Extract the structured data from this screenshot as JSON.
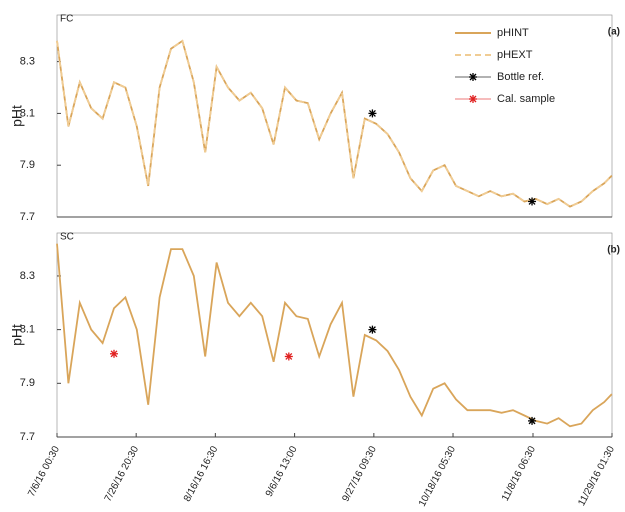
{
  "chart_data": [
    {
      "type": "line",
      "panel_label": "FC",
      "tag": "(a)",
      "ylabel": "pHt",
      "legend": "upper right",
      "xlim": [
        "7/6/16 00:30",
        "11/29/16 01:30"
      ],
      "ylim": [
        7.7,
        8.48
      ],
      "yticks": [
        7.7,
        7.9,
        8.1,
        8.3
      ],
      "x": [
        "7/6/16 00:30",
        "7/9/16 00:30",
        "7/12/16 00:30",
        "7/15/16 00:30",
        "7/18/16 00:30",
        "7/21/16 00:30",
        "7/24/16 00:30",
        "7/27/16 00:30",
        "7/30/16 00:30",
        "8/2/16 00:30",
        "8/5/16 00:30",
        "8/8/16 00:30",
        "8/11/16 00:30",
        "8/14/16 00:30",
        "8/17/16 00:30",
        "8/20/16 00:30",
        "8/23/16 00:30",
        "8/26/16 00:30",
        "8/29/16 00:30",
        "9/1/16 00:30",
        "9/4/16 00:30",
        "9/7/16 00:30",
        "9/10/16 00:30",
        "9/13/16 00:30",
        "9/16/16 00:30",
        "9/19/16 00:30",
        "9/22/16 00:30",
        "9/25/16 00:30",
        "9/28/16 00:30",
        "10/1/16 00:30",
        "10/4/16 00:30",
        "10/7/16 00:30",
        "10/10/16 00:30",
        "10/13/16 00:30",
        "10/16/16 00:30",
        "10/19/16 00:30",
        "10/22/16 00:30",
        "10/25/16 00:30",
        "10/28/16 00:30",
        "10/31/16 00:30",
        "11/3/16 00:30",
        "11/6/16 00:30",
        "11/9/16 00:30",
        "11/12/16 00:30",
        "11/15/16 00:30",
        "11/18/16 00:30",
        "11/21/16 00:30",
        "11/24/16 00:30",
        "11/27/16 00:30",
        "11/29/16 00:30"
      ],
      "series": [
        {
          "name": "pHINT",
          "color": "#d9a55a",
          "values": [
            8.38,
            8.05,
            8.22,
            8.12,
            8.08,
            8.22,
            8.2,
            8.05,
            7.82,
            8.2,
            8.35,
            8.38,
            8.22,
            7.95,
            8.28,
            8.2,
            8.15,
            8.18,
            8.12,
            7.98,
            8.2,
            8.15,
            8.14,
            8.0,
            8.1,
            8.18,
            7.85,
            8.08,
            8.06,
            8.02,
            7.95,
            7.85,
            7.8,
            7.88,
            7.9,
            7.82,
            7.8,
            7.78,
            7.8,
            7.78,
            7.79,
            7.76,
            7.77,
            7.75,
            7.77,
            7.74,
            7.76,
            7.8,
            7.83,
            7.86
          ]
        },
        {
          "name": "pHEXT",
          "color": "#f0cc94",
          "dashed": true,
          "values": [
            8.38,
            8.05,
            8.22,
            8.12,
            8.08,
            8.22,
            8.2,
            8.05,
            7.82,
            8.2,
            8.35,
            8.38,
            8.22,
            7.95,
            8.28,
            8.2,
            8.15,
            8.18,
            8.12,
            7.98,
            8.2,
            8.15,
            8.14,
            8.0,
            8.1,
            8.18,
            7.85,
            8.08,
            8.06,
            8.02,
            7.95,
            7.85,
            7.8,
            7.88,
            7.9,
            7.82,
            7.8,
            7.78,
            7.8,
            7.78,
            7.79,
            7.76,
            7.77,
            7.75,
            7.77,
            7.74,
            7.76,
            7.8,
            7.83,
            7.86
          ]
        }
      ],
      "points": [
        {
          "name": "Bottle ref.",
          "color": "#000000",
          "x": [
            "9/27/16 00:30",
            "11/8/16 00:30"
          ],
          "values": [
            8.1,
            7.76
          ]
        },
        {
          "name": "Cal. sample",
          "color": "#e02020",
          "x": [],
          "values": []
        }
      ]
    },
    {
      "type": "line",
      "panel_label": "SC",
      "tag": "(b)",
      "ylabel": "pHt",
      "xlim": [
        "7/6/16 00:30",
        "11/29/16 01:30"
      ],
      "ylim": [
        7.7,
        8.46
      ],
      "yticks": [
        7.7,
        7.9,
        8.1,
        8.3
      ],
      "xticks": [
        "7/6/16 00:30",
        "7/26/16 20:30",
        "8/16/16 16:30",
        "9/6/16 13:00",
        "9/27/16 09:30",
        "10/18/16 05:30",
        "11/8/16 06:30",
        "11/29/16 01:30"
      ],
      "x": [
        "7/6/16 00:30",
        "7/9/16 00:30",
        "7/12/16 00:30",
        "7/15/16 00:30",
        "7/18/16 00:30",
        "7/21/16 00:30",
        "7/24/16 00:30",
        "7/27/16 00:30",
        "7/30/16 00:30",
        "8/2/16 00:30",
        "8/5/16 00:30",
        "8/8/16 00:30",
        "8/11/16 00:30",
        "8/14/16 00:30",
        "8/17/16 00:30",
        "8/20/16 00:30",
        "8/23/16 00:30",
        "8/26/16 00:30",
        "8/29/16 00:30",
        "9/1/16 00:30",
        "9/4/16 00:30",
        "9/7/16 00:30",
        "9/10/16 00:30",
        "9/13/16 00:30",
        "9/16/16 00:30",
        "9/19/16 00:30",
        "9/22/16 00:30",
        "9/25/16 00:30",
        "9/28/16 00:30",
        "10/1/16 00:30",
        "10/4/16 00:30",
        "10/7/16 00:30",
        "10/10/16 00:30",
        "10/13/16 00:30",
        "10/16/16 00:30",
        "10/19/16 00:30",
        "10/22/16 00:30",
        "10/25/16 00:30",
        "10/28/16 00:30",
        "10/31/16 00:30",
        "11/3/16 00:30",
        "11/6/16 00:30",
        "11/9/16 00:30",
        "11/12/16 00:30",
        "11/15/16 00:30",
        "11/18/16 00:30",
        "11/21/16 00:30",
        "11/24/16 00:30",
        "11/27/16 00:30",
        "11/29/16 00:30"
      ],
      "series": [
        {
          "color": "#d9a55a",
          "values": [
            8.42,
            7.9,
            8.2,
            8.1,
            8.05,
            8.18,
            8.22,
            8.1,
            7.82,
            8.22,
            8.4,
            8.4,
            8.3,
            8.0,
            8.35,
            8.2,
            8.15,
            8.2,
            8.15,
            7.98,
            8.2,
            8.15,
            8.14,
            8.0,
            8.12,
            8.2,
            7.85,
            8.08,
            8.06,
            8.02,
            7.95,
            7.85,
            7.78,
            7.88,
            7.9,
            7.84,
            7.8,
            7.8,
            7.8,
            7.79,
            7.8,
            7.78,
            7.76,
            7.75,
            7.77,
            7.74,
            7.75,
            7.8,
            7.83,
            7.86
          ]
        }
      ],
      "points": [
        {
          "color": "#000000",
          "x": [
            "9/27/16 00:30",
            "11/8/16 00:30"
          ],
          "values": [
            8.1,
            7.76
          ]
        },
        {
          "color": "#e02020",
          "x": [
            "7/21/16 00:30",
            "9/5/16 00:30"
          ],
          "values": [
            8.01,
            8.0
          ]
        }
      ]
    }
  ]
}
